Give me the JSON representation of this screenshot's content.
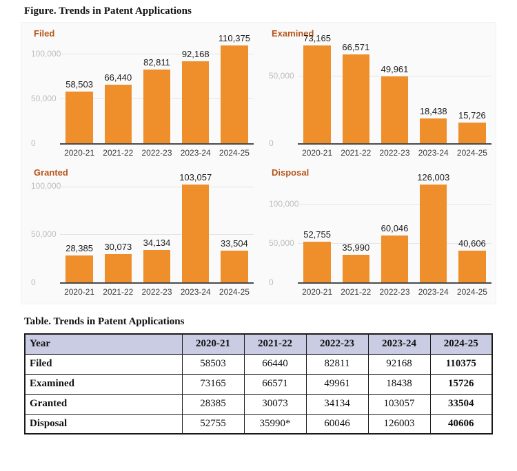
{
  "figure_title": "Figure. Trends in Patent Applications",
  "table_title": "Table. Trends in Patent Applications",
  "colors": {
    "bar": "#EE8F2C",
    "chart_title": "#B8551C",
    "gridline": "#E4E4E4",
    "axis_line": "#4A4A4A",
    "y_tick_label": "#BDBDBD",
    "x_tick_label": "#3C3C3C",
    "value_label": "#1C1C1C",
    "table_header_bg": "#C9CCE3",
    "table_border": "#1A1A1A"
  },
  "chart_data": [
    {
      "type": "bar",
      "title": "Filed",
      "categories": [
        "2020-21",
        "2021-22",
        "2022-23",
        "2023-24",
        "2024-25"
      ],
      "values": [
        58503,
        66440,
        82811,
        92168,
        110375
      ],
      "labels": [
        "58,503",
        "66,440",
        "82,811",
        "92,168",
        "110,375"
      ],
      "ylim": [
        0,
        115000
      ],
      "yticks": [
        {
          "value": 0,
          "label": "0"
        },
        {
          "value": 50000,
          "label": "50,000"
        },
        {
          "value": 100000,
          "label": "100,000"
        }
      ],
      "grid": true,
      "legend": "none"
    },
    {
      "type": "bar",
      "title": "Examined",
      "categories": [
        "2020-21",
        "2021-22",
        "2022-23",
        "2023-24",
        "2024-25"
      ],
      "values": [
        73165,
        66571,
        49961,
        18438,
        15726
      ],
      "labels": [
        "73,165",
        "66,571",
        "49,961",
        "18,438",
        "15,726"
      ],
      "ylim": [
        0,
        76500
      ],
      "yticks": [
        {
          "value": 0,
          "label": "0"
        },
        {
          "value": 50000,
          "label": "50,000"
        }
      ],
      "grid": true,
      "legend": "none"
    },
    {
      "type": "bar",
      "title": "Granted",
      "categories": [
        "2020-21",
        "2021-22",
        "2022-23",
        "2023-24",
        "2024-25"
      ],
      "values": [
        28385,
        30073,
        34134,
        103057,
        33504
      ],
      "labels": [
        "28,385",
        "30,073",
        "34,134",
        "103,057",
        "33,504"
      ],
      "ylim": [
        0,
        107500
      ],
      "yticks": [
        {
          "value": 0,
          "label": "0"
        },
        {
          "value": 50000,
          "label": "50,000"
        },
        {
          "value": 100000,
          "label": "100,000"
        }
      ],
      "grid": true,
      "legend": "none"
    },
    {
      "type": "bar",
      "title": "Disposal",
      "categories": [
        "2020-21",
        "2021-22",
        "2022-23",
        "2023-24",
        "2024-25"
      ],
      "values": [
        52755,
        35990,
        60046,
        126003,
        40606
      ],
      "labels": [
        "52,755",
        "35,990",
        "60,046",
        "126,003",
        "40,606"
      ],
      "ylim": [
        0,
        131500
      ],
      "yticks": [
        {
          "value": 0,
          "label": "0"
        },
        {
          "value": 50000,
          "label": "50,000"
        },
        {
          "value": 100000,
          "label": "100,000"
        }
      ],
      "grid": true,
      "legend": "none"
    }
  ],
  "table": {
    "columns": [
      "Year",
      "2020-21",
      "2021-22",
      "2022-23",
      "2023-24",
      "2024-25"
    ],
    "rows": [
      {
        "label": "Filed",
        "values": [
          "58503",
          "66440",
          "82811",
          "92168",
          "110375"
        ]
      },
      {
        "label": "Examined",
        "values": [
          "73165",
          "66571",
          "49961",
          "18438",
          "15726"
        ]
      },
      {
        "label": "Granted",
        "values": [
          "28385",
          "30073",
          "34134",
          "103057",
          "33504"
        ]
      },
      {
        "label": "Disposal",
        "values": [
          "52755",
          "35990*",
          "60046",
          "126003",
          "40606"
        ]
      }
    ],
    "bold_last_column": true
  }
}
